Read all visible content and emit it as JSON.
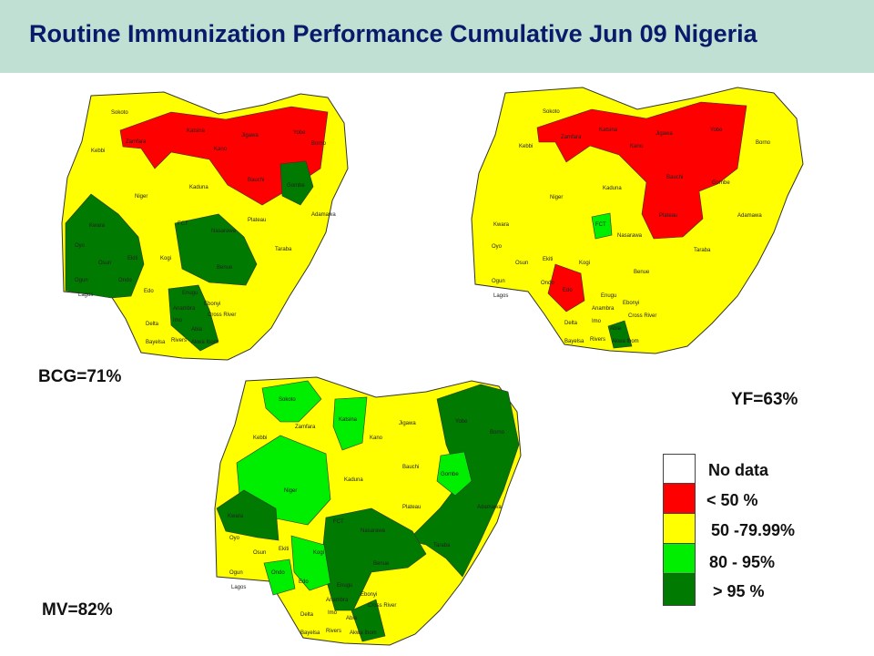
{
  "title": "Routine Immunization Performance Cumulative Jun 09 Nigeria",
  "colors": {
    "no_data": "#ffffff",
    "lt50": "#ff0000",
    "p50_80": "#ffff00",
    "p80_95": "#00ee00",
    "gt95": "#007a00",
    "title_text": "#0a1a6b",
    "header_bg": "#bfe0d2"
  },
  "maps": [
    {
      "id": "bcg",
      "label": "BCG=71%",
      "value_percent": 71
    },
    {
      "id": "yf",
      "label": "YF=63%",
      "value_percent": 63
    },
    {
      "id": "mv",
      "label": "MV=82%",
      "value_percent": 82
    }
  ],
  "state_labels": [
    "Sokoto",
    "Zamfara",
    "Katsina",
    "Kano",
    "Jigawa",
    "Yobe",
    "Borno",
    "Kebbi",
    "Bauchi",
    "Gombe",
    "Niger",
    "Kaduna",
    "Plateau",
    "Adamawa",
    "FCT",
    "Nasarawa",
    "Taraba",
    "Kwara",
    "Oyo",
    "Osun",
    "Ekiti",
    "Kogi",
    "Benue",
    "Ogun",
    "Ondo",
    "Edo",
    "Lagos",
    "Enugu",
    "Ebonyi",
    "Anambra",
    "Imo",
    "Abia",
    "Delta",
    "Cross River",
    "Bayelsa",
    "Rivers",
    "Akwa Ibom"
  ],
  "legend": [
    {
      "label": "No data",
      "color": "#ffffff"
    },
    {
      "label": "< 50 %",
      "color": "#ff0000"
    },
    {
      "label": "50 -79.99%",
      "color": "#ffff00"
    },
    {
      "label": "80 - 95%",
      "color": "#00ee00"
    },
    {
      "label": "> 95 %",
      "color": "#007a00"
    }
  ]
}
